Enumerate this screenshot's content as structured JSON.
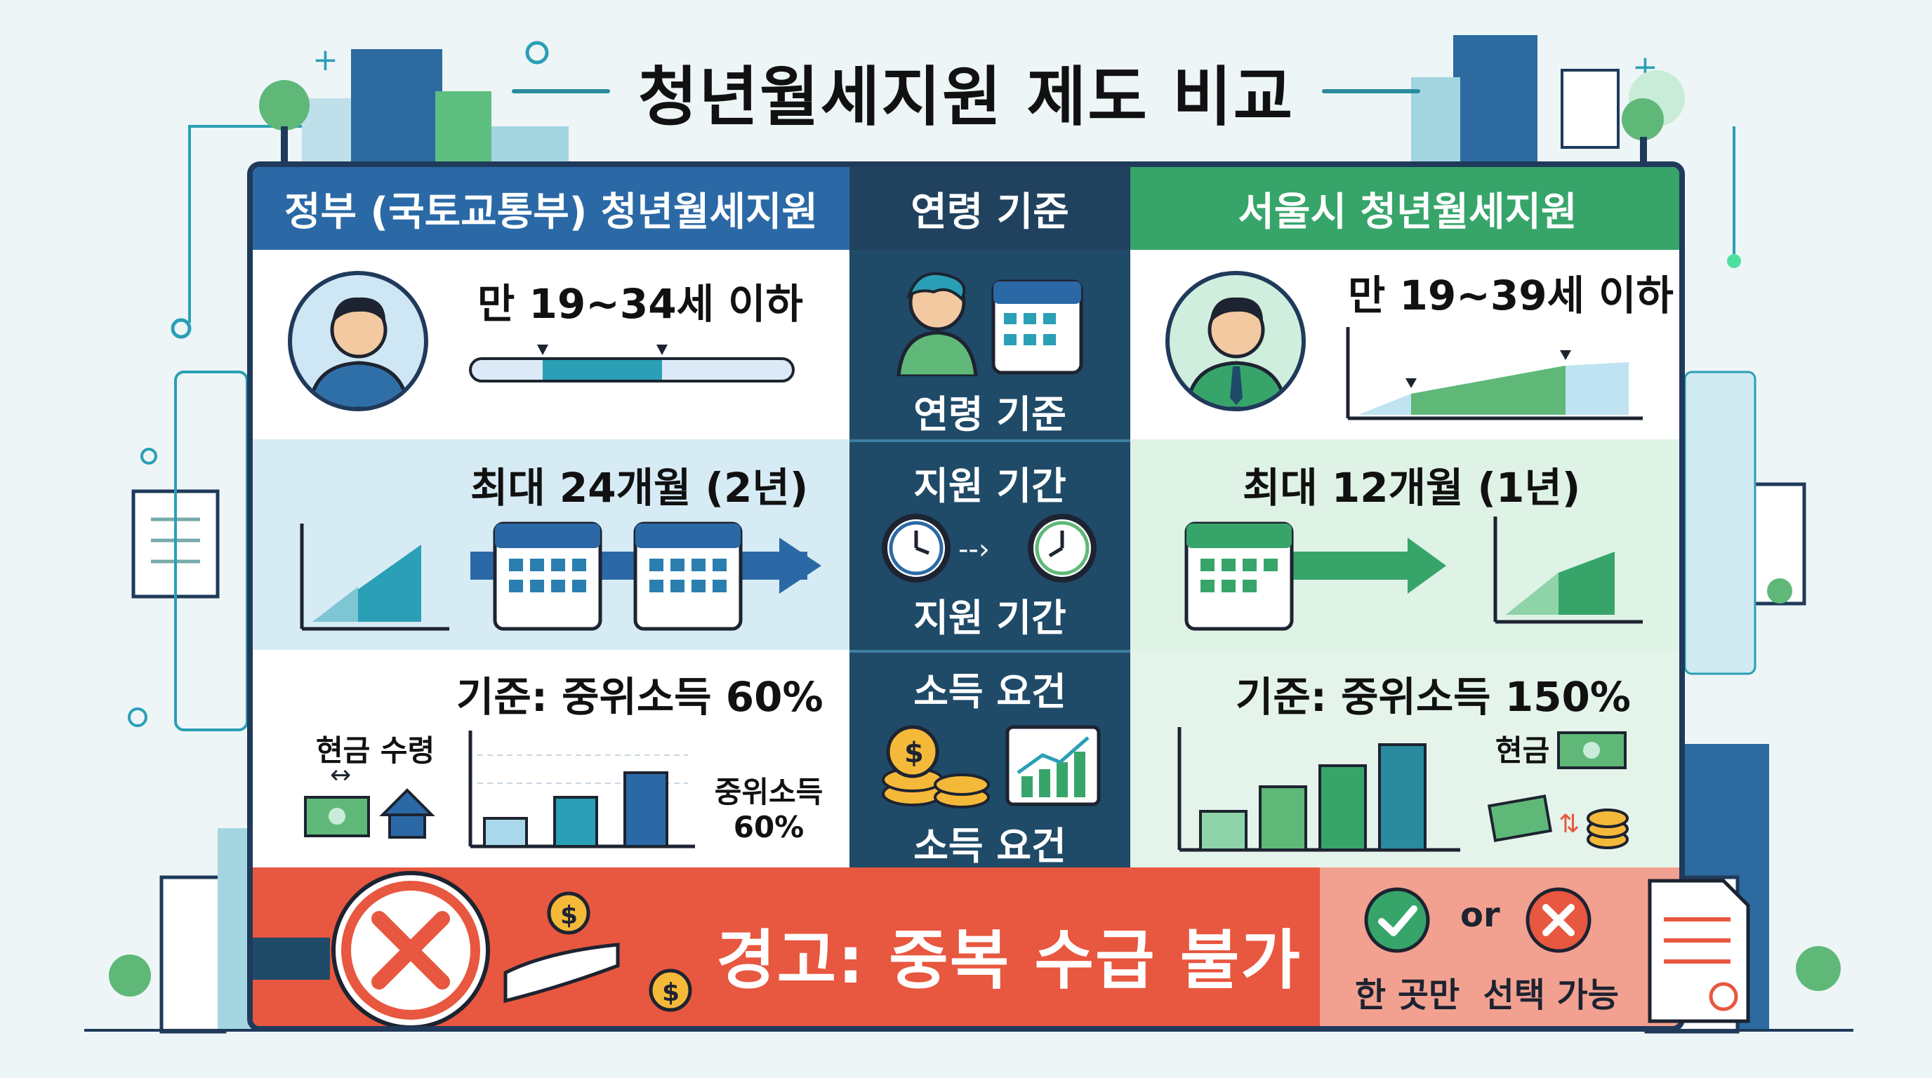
{
  "title": "청년월세지원 제도 비교",
  "headers": {
    "left": "정부 (국토교통부) 청년월세지원",
    "middle": "연령 기준",
    "right": "서울시 청년월세지원"
  },
  "middle_labels": {
    "age": "연령 기준",
    "period_top": "지원 기간",
    "period_bottom": "지원 기간",
    "income_top": "소득 요건",
    "income_bottom": "소득 요건"
  },
  "government": {
    "age": "만 19~34세 이하",
    "period": "최대 24개월 (2년)",
    "income_criteria": "기준: 중위소득 60%",
    "cash_label": "현금 수령",
    "median_label_1": "중위소득",
    "median_label_2": "60%"
  },
  "seoul": {
    "age": "만 19~39세 이하",
    "period": "최대 12개월 (1년)",
    "income_criteria": "기준: 중위소득 150%",
    "cash_label": "현금"
  },
  "warning": {
    "text": "경고: 중복 수급 불가",
    "or_label": "or",
    "choice_label": "한 곳만  선택 가능"
  },
  "colors": {
    "gov_blue": "#2b69a6",
    "mid_navy": "#20425f",
    "seoul_green": "#37a56a",
    "warning_red": "#e8573f"
  }
}
